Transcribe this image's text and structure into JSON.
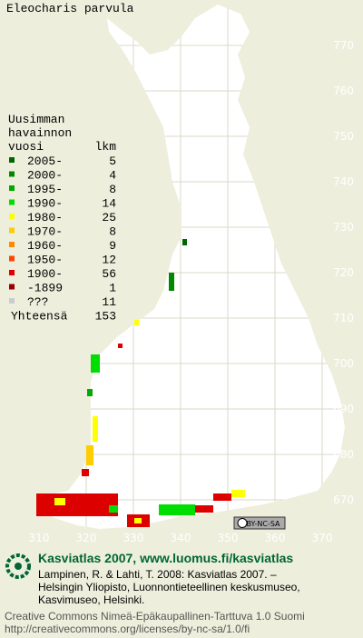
{
  "title": "Eleocharis parvula",
  "legend": {
    "header": [
      "Uusimman",
      "havainnon",
      "vuosi"
    ],
    "count_header": "lkm",
    "rows": [
      {
        "label": "2005-",
        "count": 5,
        "color": "#006600"
      },
      {
        "label": "2000-",
        "count": 4,
        "color": "#008800"
      },
      {
        "label": "1995-",
        "count": 8,
        "color": "#00aa00"
      },
      {
        "label": "1990-",
        "count": 14,
        "color": "#00dd00"
      },
      {
        "label": "1980-",
        "count": 25,
        "color": "#ffff00"
      },
      {
        "label": "1970-",
        "count": 8,
        "color": "#ffcc00"
      },
      {
        "label": "1960-",
        "count": 9,
        "color": "#ff8800"
      },
      {
        "label": "1950-",
        "count": 12,
        "color": "#ff4400"
      },
      {
        "label": "1900-",
        "count": 56,
        "color": "#dd0000"
      },
      {
        "label": "-1899",
        "count": 1,
        "color": "#990000"
      },
      {
        "label": "???",
        "count": 11,
        "color": "#cccccc"
      }
    ],
    "total_label": "Yhteensä",
    "total": 153
  },
  "grid": {
    "north": [
      770,
      760,
      750,
      740,
      730,
      720,
      710,
      700,
      690,
      680,
      670
    ],
    "east": [
      310,
      320,
      330,
      340,
      350,
      360,
      370
    ]
  },
  "license_badge": "BY-NC-SA",
  "footer": {
    "site": "Kasviatlas 2007, www.luomus.fi/kasviatlas",
    "citation": [
      "Lampinen, R. & Lahti, T. 2008: Kasviatlas 2007. –",
      "Helsingin Yliopisto, Luonnontieteellinen keskusmuseo,",
      "Kasvimuseo, Helsinki."
    ],
    "license": [
      "Creative Commons Nimeä-Epäkaupallinen-Tarttuva 1.0 Suomi",
      "http://creativecommons.org/licenses/by-nc-sa/1.0/fi"
    ]
  }
}
